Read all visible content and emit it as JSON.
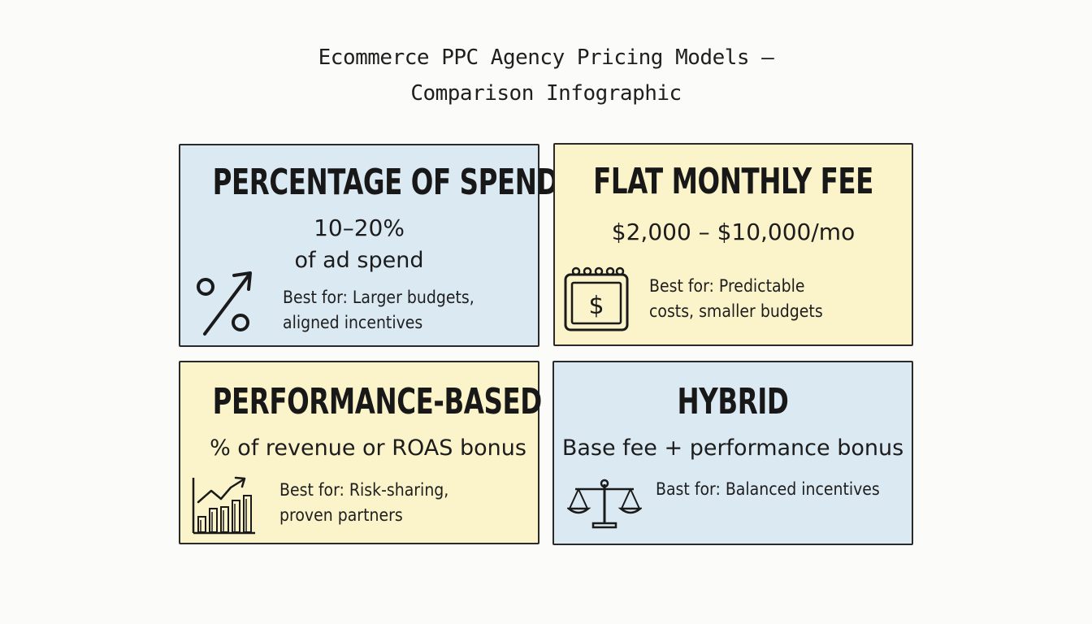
{
  "title": {
    "line1": "Ecommerce PPC Agency Pricing Models –",
    "line2": "Comparison Infographic"
  },
  "cards": {
    "percentage": {
      "heading": "PERCENTAGE OF SPEND",
      "value": "10–20%",
      "value_note": "of ad spend",
      "best_line1": "Best for: Larger budgets,",
      "best_line2": "aligned incentives",
      "icon": "percent-arrow-up-icon",
      "color": "#dbe9f3"
    },
    "flat": {
      "heading": "FLAT MONTHLY FEE",
      "value": "$2,000 – $10,000/mo",
      "best_line1": "Best for: Predictable",
      "best_line2": "costs, smaller budgets",
      "icon": "calendar-dollar-icon",
      "color": "#fbf3c9"
    },
    "performance": {
      "heading": "PERFORMANCE-BASED",
      "value": "% of revenue or ROAS bonus",
      "best_line1": "Best for: Risk-sharing,",
      "best_line2": "proven partners",
      "icon": "bar-chart-growth-icon",
      "color": "#fbf3c9"
    },
    "hybrid": {
      "heading": "HYBRID",
      "value": "Base fee + performance bonus",
      "best_line1": "Bast for: Balanced incentives",
      "icon": "balance-scale-icon",
      "color": "#dbe9f3"
    }
  }
}
